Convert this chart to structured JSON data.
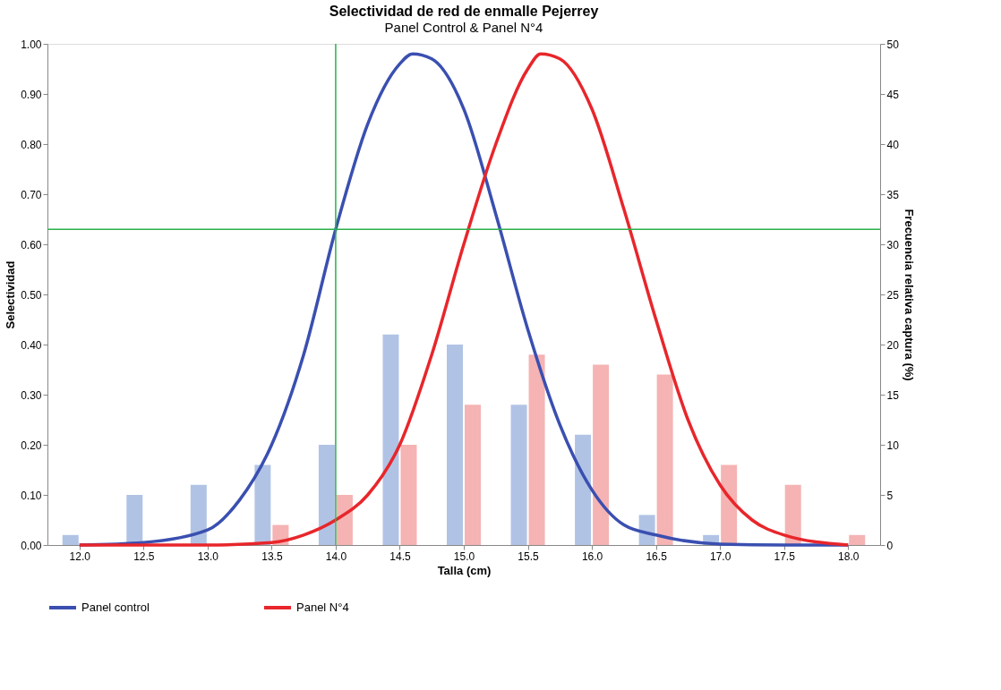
{
  "chart_data": {
    "type": "bar",
    "title": "Selectividad de red de enmalle Pejerrey",
    "subtitle": "Panel Control & Panel N°4",
    "xlabel": "Talla (cm)",
    "ylabel": "Selectividad",
    "y2label": "Frecuencia relativa captura (%)",
    "xlim": [
      11.75,
      18.25
    ],
    "xticks": [
      {
        "value": 12,
        "label": "12.0"
      },
      {
        "value": 12.5,
        "label": "12.5"
      },
      {
        "value": 13,
        "label": "13.0"
      },
      {
        "value": 13.5,
        "label": "13.5"
      },
      {
        "value": 14,
        "label": "14.0"
      },
      {
        "value": 14.5,
        "label": "14.5"
      },
      {
        "value": 15,
        "label": "15.0"
      },
      {
        "value": 15.5,
        "label": "15.5"
      },
      {
        "value": 16,
        "label": "16.0"
      },
      {
        "value": 16.5,
        "label": "16.5"
      },
      {
        "value": 17,
        "label": "17.0"
      },
      {
        "value": 17.5,
        "label": "17.5"
      },
      {
        "value": 18,
        "label": "18.0"
      }
    ],
    "ylim": [
      0,
      1
    ],
    "yticks": [
      {
        "value": 0,
        "label": "0.00"
      },
      {
        "value": 0.1,
        "label": "0.10"
      },
      {
        "value": 0.2,
        "label": "0.20"
      },
      {
        "value": 0.3,
        "label": "0.30"
      },
      {
        "value": 0.4,
        "label": "0.40"
      },
      {
        "value": 0.5,
        "label": "0.50"
      },
      {
        "value": 0.6,
        "label": "0.60"
      },
      {
        "value": 0.7,
        "label": "0.70"
      },
      {
        "value": 0.8,
        "label": "0.80"
      },
      {
        "value": 0.9,
        "label": "0.90"
      },
      {
        "value": 1,
        "label": "1.00"
      }
    ],
    "y2lim": [
      0,
      50
    ],
    "y2ticks": [
      0,
      5,
      10,
      15,
      20,
      25,
      30,
      35,
      40,
      45,
      50
    ],
    "grid": false,
    "legend": "bottom",
    "series": [
      {
        "axis": "y2",
        "color": "#a9bde2",
        "x": [
          12,
          12.5,
          13,
          13.5,
          14,
          14.5,
          15,
          15.5,
          16,
          16.5,
          17,
          17.5,
          18
        ],
        "values": [
          1,
          5,
          6,
          8,
          10,
          21,
          20,
          14,
          11,
          3,
          1,
          0,
          0
        ]
      },
      {
        "axis": "y2",
        "color": "#f4abab",
        "x": [
          12,
          12.5,
          13,
          13.5,
          14,
          14.5,
          15,
          15.5,
          16,
          16.5,
          17,
          17.5,
          18
        ],
        "values": [
          0,
          0,
          0,
          2,
          5,
          10,
          14,
          19,
          18,
          17,
          8,
          6,
          1
        ]
      },
      {
        "type": "line",
        "axis": "y",
        "name": "Panel control",
        "color": "#3a4fb0",
        "x": [
          12,
          12.5,
          13,
          13.25,
          13.5,
          13.75,
          14,
          14.25,
          14.5,
          14.6,
          14.75,
          15,
          15.25,
          15.5,
          15.75,
          16,
          16.25,
          16.5,
          17,
          17.5,
          18
        ],
        "values": [
          0,
          0.005,
          0.03,
          0.09,
          0.2,
          0.38,
          0.63,
          0.84,
          0.96,
          0.98,
          0.97,
          0.87,
          0.66,
          0.43,
          0.24,
          0.11,
          0.04,
          0.02,
          0.002,
          0,
          0
        ]
      },
      {
        "type": "line",
        "axis": "y",
        "name": "Panel N°4",
        "color": "#e8262b",
        "x": [
          12,
          12.5,
          13,
          13.5,
          13.75,
          14,
          14.25,
          14.5,
          14.75,
          15,
          15.25,
          15.5,
          15.6,
          15.75,
          16,
          16.25,
          16.5,
          16.75,
          17,
          17.25,
          17.5,
          18
        ],
        "values": [
          0,
          0,
          0,
          0.005,
          0.02,
          0.05,
          0.1,
          0.2,
          0.38,
          0.6,
          0.8,
          0.95,
          0.98,
          0.97,
          0.87,
          0.67,
          0.45,
          0.25,
          0.12,
          0.05,
          0.02,
          0
        ]
      }
    ],
    "ref_lines": [
      {
        "axis": "x",
        "value": 14,
        "color": "#2bb04a"
      },
      {
        "axis": "y",
        "value": 0.63,
        "color": "#2bb04a"
      }
    ]
  }
}
